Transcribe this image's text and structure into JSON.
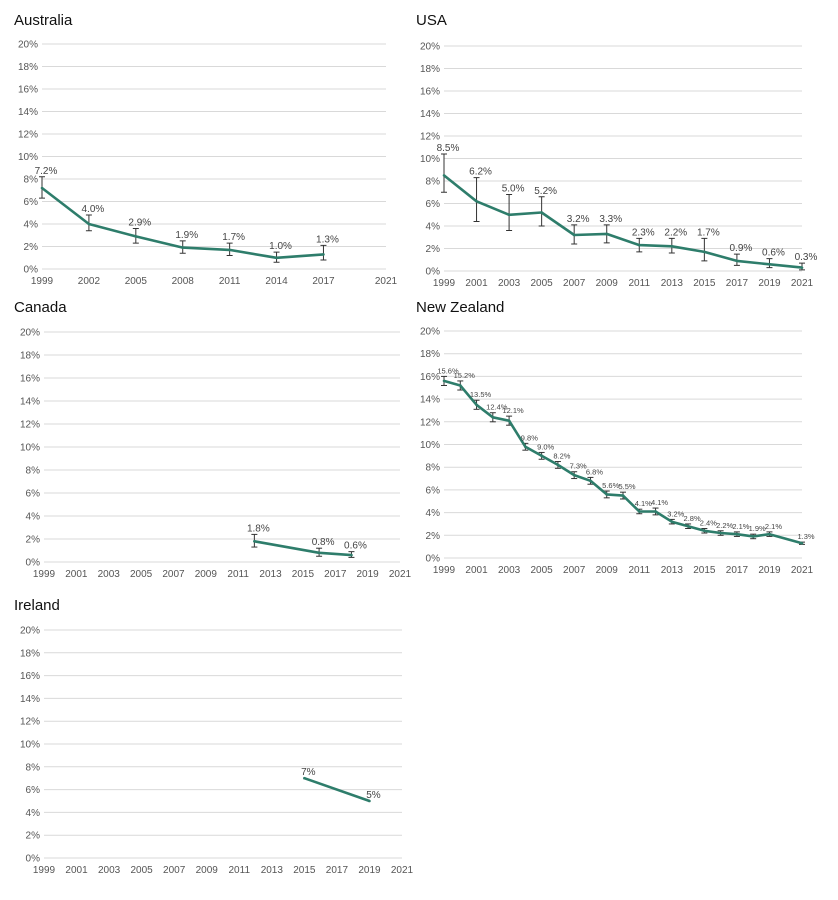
{
  "colors": {
    "series": "#2e7d6b",
    "grid": "#d9d9d9"
  },
  "chart_data": [
    {
      "type": "line",
      "title": "Australia",
      "ylim": [
        0,
        20
      ],
      "yticks": [
        "0%",
        "2%",
        "4%",
        "6%",
        "8%",
        "10%",
        "12%",
        "14%",
        "16%",
        "18%",
        "20%"
      ],
      "xticks": [
        "1999",
        "2002",
        "2005",
        "2008",
        "2011",
        "2014",
        "2017",
        "2021"
      ],
      "xlim": [
        1999,
        2021
      ],
      "grid": true,
      "series": [
        {
          "x": [
            1999,
            2002,
            2005,
            2008,
            2011,
            2014,
            2017
          ],
          "y": [
            7.2,
            4.0,
            2.9,
            1.9,
            1.7,
            1.0,
            1.3
          ],
          "labels": [
            "7.2%",
            "4.0%",
            "2.9%",
            "1.9%",
            "1.7%",
            "1.0%",
            "1.3%"
          ],
          "err_low": [
            6.3,
            3.4,
            2.3,
            1.4,
            1.2,
            0.6,
            0.8
          ],
          "err_high": [
            8.2,
            4.8,
            3.6,
            2.5,
            2.3,
            1.5,
            2.1
          ]
        }
      ]
    },
    {
      "type": "line",
      "title": "USA",
      "ylim": [
        0,
        20
      ],
      "yticks": [
        "0%",
        "2%",
        "4%",
        "6%",
        "8%",
        "10%",
        "12%",
        "14%",
        "16%",
        "18%",
        "20%"
      ],
      "xticks": [
        "1999",
        "2001",
        "2003",
        "2005",
        "2007",
        "2009",
        "2011",
        "2013",
        "2015",
        "2017",
        "2019",
        "2021"
      ],
      "xlim": [
        1999,
        2021
      ],
      "grid": true,
      "series": [
        {
          "x": [
            1999,
            2001,
            2003,
            2005,
            2007,
            2009,
            2011,
            2013,
            2015,
            2017,
            2019,
            2021
          ],
          "y": [
            8.5,
            6.2,
            5.0,
            5.2,
            3.2,
            3.3,
            2.3,
            2.2,
            1.7,
            0.9,
            0.6,
            0.3
          ],
          "labels": [
            "8.5%",
            "6.2%",
            "5.0%",
            "5.2%",
            "3.2%",
            "3.3%",
            "2.3%",
            "2.2%",
            "1.7%",
            "0.9%",
            "0.6%",
            "0.3%"
          ],
          "err_low": [
            7.0,
            4.4,
            3.6,
            4.0,
            2.4,
            2.5,
            1.7,
            1.6,
            0.9,
            0.5,
            0.3,
            0.1
          ],
          "err_high": [
            10.4,
            8.3,
            6.8,
            6.6,
            4.1,
            4.1,
            2.9,
            2.9,
            2.9,
            1.5,
            1.1,
            0.7
          ]
        }
      ]
    },
    {
      "type": "line",
      "title": "Canada",
      "ylim": [
        0,
        20
      ],
      "yticks": [
        "0%",
        "2%",
        "4%",
        "6%",
        "8%",
        "10%",
        "12%",
        "14%",
        "16%",
        "18%",
        "20%"
      ],
      "xticks": [
        "1999",
        "2001",
        "2003",
        "2005",
        "2007",
        "2009",
        "2011",
        "2013",
        "2015",
        "2017",
        "2019",
        "2021"
      ],
      "xlim": [
        1999,
        2021
      ],
      "grid": true,
      "series": [
        {
          "x": [
            2012,
            2016,
            2018
          ],
          "y": [
            1.8,
            0.8,
            0.6
          ],
          "labels": [
            "1.8%",
            "0.8%",
            "0.6%"
          ],
          "err_low": [
            1.3,
            0.5,
            0.4
          ],
          "err_high": [
            2.4,
            1.2,
            0.9
          ]
        }
      ]
    },
    {
      "type": "line",
      "title": "New Zealand",
      "ylim": [
        0,
        20
      ],
      "yticks": [
        "0%",
        "2%",
        "4%",
        "6%",
        "8%",
        "10%",
        "12%",
        "14%",
        "16%",
        "18%",
        "20%"
      ],
      "xticks": [
        "1999",
        "2001",
        "2003",
        "2005",
        "2007",
        "2009",
        "2011",
        "2013",
        "2015",
        "2017",
        "2019",
        "2021"
      ],
      "xlim": [
        1999,
        2021
      ],
      "grid": true,
      "series": [
        {
          "x": [
            1999,
            2000,
            2001,
            2002,
            2003,
            2004,
            2005,
            2006,
            2007,
            2008,
            2009,
            2010,
            2011,
            2012,
            2013,
            2014,
            2015,
            2016,
            2017,
            2018,
            2019,
            2021
          ],
          "y": [
            15.6,
            15.2,
            13.5,
            12.4,
            12.1,
            9.8,
            9.0,
            8.2,
            7.3,
            6.8,
            5.6,
            5.5,
            4.1,
            4.1,
            3.2,
            2.8,
            2.4,
            2.2,
            2.1,
            1.9,
            2.1,
            1.3
          ],
          "labels": [
            "15.6%",
            "15.2%",
            "13.5%",
            "12.4%",
            "12.1%",
            "9.8%",
            "9.0%",
            "8.2%",
            "7.3%",
            "6.8%",
            "5.6%",
            "5.5%",
            "4.1%",
            "4.1%",
            "3.2%",
            "2.8%",
            "2.4%",
            "2.2%",
            "2.1%",
            "1.9%",
            "2.1%",
            "1.3%"
          ],
          "err_low": [
            15.2,
            14.8,
            13.1,
            12.0,
            11.7,
            9.5,
            8.7,
            7.9,
            7.0,
            6.5,
            5.3,
            5.2,
            3.9,
            3.8,
            3.0,
            2.6,
            2.2,
            2.0,
            1.9,
            1.7,
            1.9,
            1.2
          ],
          "err_high": [
            16.0,
            15.6,
            13.9,
            12.8,
            12.5,
            10.1,
            9.3,
            8.5,
            7.6,
            7.1,
            5.9,
            5.8,
            4.3,
            4.4,
            3.4,
            3.0,
            2.6,
            2.4,
            2.3,
            2.1,
            2.3,
            1.4
          ]
        }
      ]
    },
    {
      "type": "line",
      "title": "Ireland",
      "ylim": [
        0,
        20
      ],
      "yticks": [
        "0%",
        "2%",
        "4%",
        "6%",
        "8%",
        "10%",
        "12%",
        "14%",
        "16%",
        "18%",
        "20%"
      ],
      "xticks": [
        "1999",
        "2001",
        "2003",
        "2005",
        "2007",
        "2009",
        "2011",
        "2013",
        "2015",
        "2017",
        "2019",
        "2021"
      ],
      "xlim": [
        1999,
        2021
      ],
      "grid": true,
      "series": [
        {
          "x": [
            2015,
            2019
          ],
          "y": [
            7,
            5
          ],
          "labels": [
            "7%",
            "5%"
          ],
          "err_low": [],
          "err_high": []
        }
      ]
    }
  ]
}
